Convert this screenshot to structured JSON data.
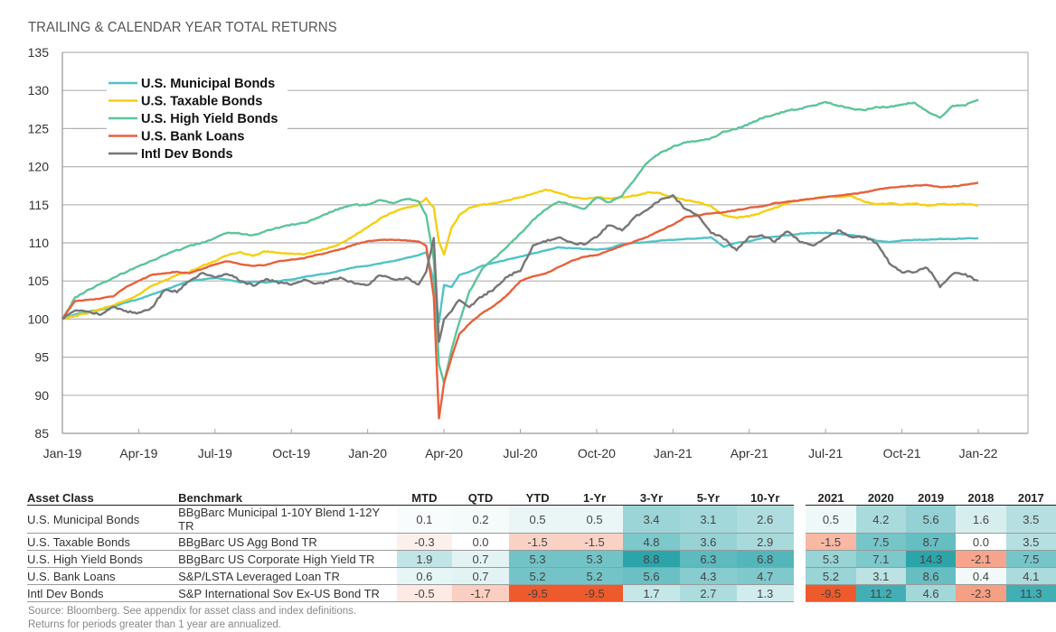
{
  "title": "TRAILING & CALENDAR YEAR TOTAL RETURNS",
  "chart_data": {
    "type": "line",
    "title": "TRAILING & CALENDAR YEAR TOTAL RETURNS",
    "xlabel": "",
    "ylabel": "",
    "ylim": [
      85,
      135
    ],
    "yticks": [
      85,
      90,
      95,
      100,
      105,
      110,
      115,
      120,
      125,
      130,
      135
    ],
    "xticks": [
      "Jan-19",
      "Apr-19",
      "Jul-19",
      "Oct-19",
      "Jan-20",
      "Apr-20",
      "Jul-20",
      "Oct-20",
      "Jan-21",
      "Apr-21",
      "Jul-21",
      "Oct-21",
      "Jan-22"
    ],
    "xrange_months": [
      0,
      36
    ],
    "grid": true,
    "legend_position": "top-left",
    "x": [
      0,
      0.5,
      1,
      1.5,
      2,
      2.5,
      3,
      3.5,
      4,
      4.5,
      5,
      5.5,
      6,
      6.5,
      7,
      7.5,
      8,
      8.5,
      9,
      9.5,
      10,
      10.5,
      11,
      11.5,
      12,
      12.5,
      13,
      13.5,
      14,
      14.3,
      14.6,
      14.8,
      15,
      15.3,
      15.6,
      16,
      16.5,
      17,
      17.5,
      18,
      18.5,
      19,
      19.5,
      20,
      20.5,
      21,
      21.5,
      22,
      22.5,
      23,
      23.5,
      24,
      24.5,
      25,
      25.5,
      26,
      26.5,
      27,
      27.5,
      28,
      28.5,
      29,
      29.5,
      30,
      30.5,
      31,
      31.5,
      32,
      32.5,
      33,
      33.5,
      34,
      34.5,
      35,
      35.5,
      36
    ],
    "series": [
      {
        "name": "U.S.  Municipal Bonds",
        "color": "#4fc3c8",
        "values": [
          100,
          100.6,
          101,
          101.2,
          101.6,
          102.2,
          102.6,
          103.2,
          103.8,
          104.4,
          105.0,
          105.2,
          105.4,
          105.2,
          104.8,
          104.9,
          104.8,
          105.0,
          105.2,
          105.5,
          105.8,
          106.0,
          106.4,
          106.8,
          107.0,
          107.3,
          107.6,
          108.0,
          108.4,
          108.8,
          105,
          99.6,
          104.5,
          104.2,
          105.8,
          106.2,
          107.0,
          107.4,
          107.8,
          108.2,
          108.6,
          109.0,
          109.4,
          109.3,
          109.2,
          109.1,
          109.3,
          109.8,
          110.0,
          110.1,
          110.3,
          110.4,
          110.5,
          110.6,
          110.7,
          109.5,
          110.0,
          110.2,
          110.6,
          110.8,
          111.0,
          111.2,
          111.3,
          111.3,
          111.2,
          111.0,
          110.8,
          110.3,
          110.1,
          110.3,
          110.4,
          110.4,
          110.5,
          110.5,
          110.6,
          110.6
        ]
      },
      {
        "name": "U.S. Taxable Bonds",
        "color": "#f5cf0f",
        "values": [
          100,
          100.4,
          100.8,
          101.3,
          101.8,
          102.4,
          103.2,
          104.4,
          105.0,
          105.8,
          106.2,
          107.0,
          107.6,
          108.4,
          108.8,
          108.3,
          108.9,
          108.7,
          108.6,
          108.5,
          108.9,
          109.4,
          110.0,
          111.0,
          112.0,
          113.2,
          114.0,
          114.6,
          115.0,
          115.8,
          114.6,
          110.2,
          108.4,
          112.0,
          113.6,
          114.6,
          115.0,
          115.2,
          115.6,
          116.0,
          116.4,
          117.0,
          116.6,
          116.0,
          115.8,
          116.0,
          115.8,
          116.0,
          116.2,
          116.6,
          116.5,
          116.0,
          115.6,
          115.3,
          114.8,
          113.6,
          113.3,
          113.5,
          114.0,
          114.6,
          115.2,
          115.6,
          115.8,
          116.1,
          116.0,
          116.2,
          115.4,
          115.1,
          115.2,
          115.0,
          115.2,
          114.9,
          115.1,
          115.0,
          115.1,
          114.9
        ]
      },
      {
        "name": "U.S. High Yield Bonds",
        "color": "#5dc49a",
        "values": [
          100,
          102.8,
          103.8,
          104.6,
          105.4,
          106.2,
          107.0,
          107.6,
          108.4,
          109.0,
          109.6,
          110.0,
          110.6,
          111.4,
          111.2,
          111.0,
          111.6,
          112.0,
          112.4,
          112.6,
          113.2,
          114.0,
          114.6,
          115.0,
          115.0,
          115.6,
          115.2,
          115.8,
          115.5,
          113.6,
          107.8,
          94.0,
          91.6,
          96.0,
          99.6,
          103.6,
          106.6,
          108.0,
          109.6,
          111.2,
          113.0,
          114.4,
          115.4,
          115.0,
          114.4,
          116.0,
          115.3,
          116.2,
          118.4,
          120.6,
          121.8,
          122.6,
          123.2,
          123.4,
          123.7,
          124.6,
          125.0,
          125.6,
          126.4,
          126.8,
          127.4,
          127.6,
          128.0,
          128.5,
          128.0,
          127.6,
          127.4,
          127.8,
          127.8,
          128.2,
          128.4,
          127.2,
          126.4,
          128.0,
          128.1,
          128.8
        ]
      },
      {
        "name": "U.S. Bank Loans",
        "color": "#e8603c",
        "values": [
          100,
          102.4,
          102.5,
          102.7,
          103.0,
          104.2,
          105.0,
          105.8,
          106.0,
          106.2,
          106.0,
          106.6,
          107.2,
          107.6,
          107.2,
          107.0,
          107.1,
          107.6,
          107.8,
          108.0,
          108.4,
          108.8,
          109.2,
          109.8,
          110.2,
          110.4,
          110.4,
          110.3,
          110.2,
          109.6,
          103.0,
          87.0,
          91.6,
          95.0,
          98.0,
          99.4,
          100.8,
          101.8,
          103.2,
          105.0,
          105.6,
          106.0,
          106.8,
          107.6,
          108.2,
          108.4,
          109.0,
          109.6,
          110.2,
          110.8,
          111.6,
          112.4,
          113.4,
          113.6,
          113.9,
          114.0,
          114.3,
          114.6,
          114.8,
          115.2,
          115.4,
          115.6,
          115.8,
          116.0,
          116.2,
          116.4,
          116.6,
          117.0,
          117.2,
          117.4,
          117.5,
          117.6,
          117.3,
          117.4,
          117.6,
          117.9
        ]
      },
      {
        "name": "Intl Dev Bonds",
        "color": "#767676",
        "values": [
          100,
          101.2,
          101.0,
          100.6,
          101.6,
          101.0,
          100.8,
          101.4,
          103.8,
          103.6,
          105.0,
          106.0,
          105.4,
          106.0,
          105.0,
          104.4,
          105.2,
          104.8,
          104.6,
          105.2,
          104.6,
          105.0,
          105.4,
          104.6,
          104.4,
          105.8,
          105.2,
          105.4,
          104.6,
          106.2,
          110.6,
          97.0,
          100.0,
          101.0,
          102.6,
          101.6,
          103.0,
          104.0,
          105.6,
          106.4,
          109.6,
          110.2,
          110.8,
          110.0,
          109.8,
          110.8,
          112.4,
          111.6,
          113.4,
          114.4,
          115.6,
          116.2,
          114.4,
          113.6,
          111.4,
          110.6,
          109.0,
          110.8,
          111.0,
          110.2,
          111.6,
          110.2,
          109.6,
          110.6,
          111.6,
          110.8,
          110.8,
          110.0,
          107.4,
          106.2,
          106.2,
          106.8,
          104.3,
          106.0,
          105.8,
          105.0
        ]
      }
    ]
  },
  "table": {
    "headers": [
      "Asset Class",
      "Benchmark",
      "MTD",
      "QTD",
      "YTD",
      "1-Yr",
      "3-Yr",
      "5-Yr",
      "10-Yr",
      "2021",
      "2020",
      "2019",
      "2018",
      "2017"
    ],
    "rows": [
      {
        "asset": "U.S. Municipal Bonds",
        "benchmark": "BBgBarc Municipal 1-10Y Blend 1-12Y TR",
        "trailing": [
          "0.1",
          "0.2",
          "0.5",
          "0.5",
          "3.4",
          "3.1",
          "2.6"
        ],
        "calendar": [
          "0.5",
          "4.2",
          "5.6",
          "1.6",
          "3.5"
        ]
      },
      {
        "asset": "U.S. Taxable Bonds",
        "benchmark": "BBgBarc US Agg Bond TR",
        "trailing": [
          "-0.3",
          "0.0",
          "-1.5",
          "-1.5",
          "4.8",
          "3.6",
          "2.9"
        ],
        "calendar": [
          "-1.5",
          "7.5",
          "8.7",
          "0.0",
          "3.5"
        ]
      },
      {
        "asset": "U.S. High Yield Bonds",
        "benchmark": "BBgBarc US Corporate High Yield TR",
        "trailing": [
          "1.9",
          "0.7",
          "5.3",
          "5.3",
          "8.8",
          "6.3",
          "6.8"
        ],
        "calendar": [
          "5.3",
          "7.1",
          "14.3",
          "-2.1",
          "7.5"
        ]
      },
      {
        "asset": "U.S. Bank Loans",
        "benchmark": "S&P/LSTA Leveraged Loan TR",
        "trailing": [
          "0.6",
          "0.7",
          "5.2",
          "5.2",
          "5.6",
          "4.3",
          "4.7"
        ],
        "calendar": [
          "5.2",
          "3.1",
          "8.6",
          "0.4",
          "4.1"
        ]
      },
      {
        "asset": "Intl Dev Bonds",
        "benchmark": "S&P International Sov Ex-US Bond TR",
        "trailing": [
          "-0.5",
          "-1.7",
          "-9.5",
          "-9.5",
          "1.7",
          "2.7",
          "1.3"
        ],
        "calendar": [
          "-9.5",
          "11.2",
          "4.6",
          "-2.3",
          "11.3"
        ]
      }
    ]
  },
  "heat_colors": {
    "positive": "#2ba5aa",
    "negative": "#ee5a2c",
    "neutral": "#ffffff"
  },
  "footnote": {
    "line1": "Source: Bloomberg. See appendix for asset class and index definitions.",
    "line2": "Returns for periods greater than 1 year are annualized."
  }
}
